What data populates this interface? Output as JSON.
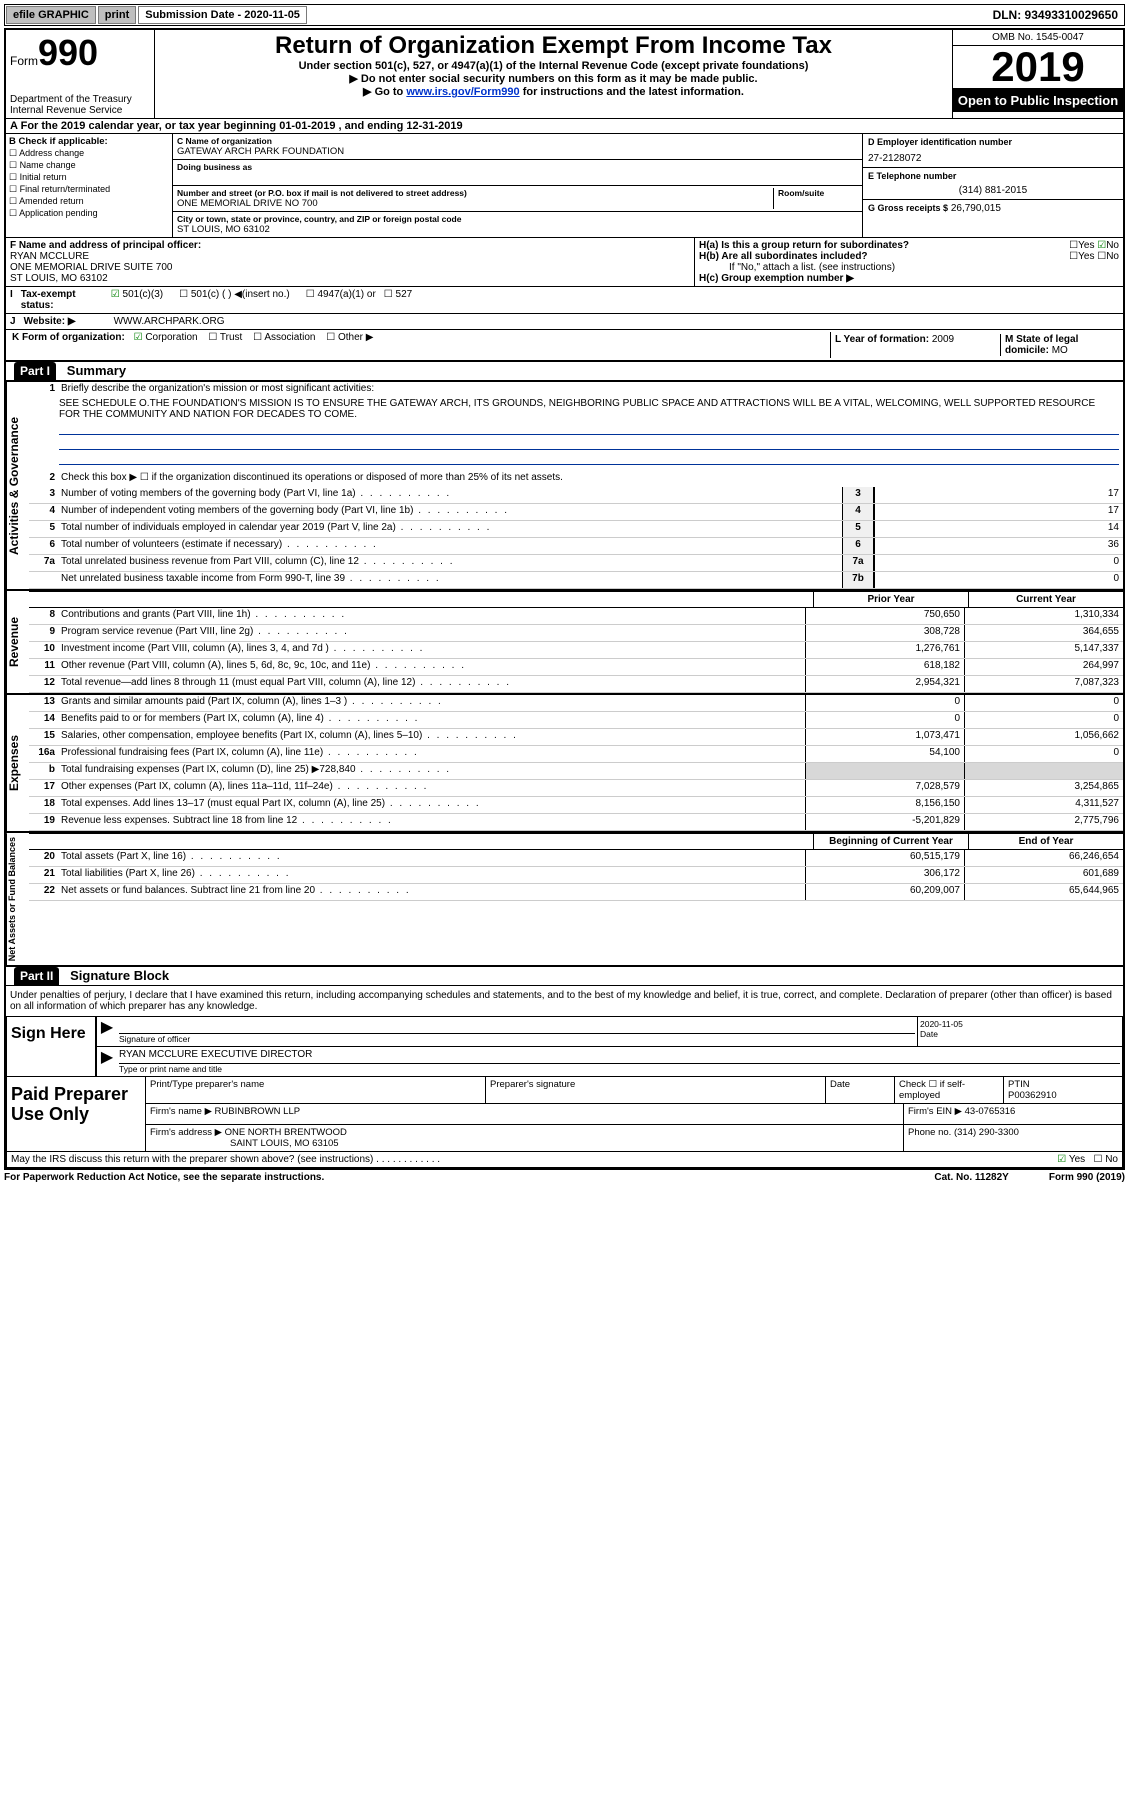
{
  "topbar": {
    "efile": "efile GRAPHIC",
    "print": "print",
    "submission": "Submission Date - 2020-11-05",
    "dln": "DLN: 93493310029650"
  },
  "header": {
    "form_word": "Form",
    "form_num": "990",
    "dept": "Department of the Treasury\nInternal Revenue Service",
    "title": "Return of Organization Exempt From Income Tax",
    "subtitle": "Under section 501(c), 527, or 4947(a)(1) of the Internal Revenue Code (except private foundations)",
    "note1": "Do not enter social security numbers on this form as it may be made public.",
    "note2_pre": "Go to ",
    "note2_link": "www.irs.gov/Form990",
    "note2_post": " for instructions and the latest information.",
    "omb": "OMB No. 1545-0047",
    "year": "2019",
    "open": "Open to Public Inspection"
  },
  "period": "For the 2019 calendar year, or tax year beginning 01-01-2019   , and ending 12-31-2019",
  "B": {
    "hdr": "B Check if applicable:",
    "opts": [
      "Address change",
      "Name change",
      "Initial return",
      "Final return/terminated",
      "Amended return",
      "Application pending"
    ]
  },
  "C": {
    "name_lbl": "C Name of organization",
    "name": "GATEWAY ARCH PARK FOUNDATION",
    "dba_lbl": "Doing business as",
    "addr_lbl": "Number and street (or P.O. box if mail is not delivered to street address)",
    "room_lbl": "Room/suite",
    "addr": "ONE MEMORIAL DRIVE NO 700",
    "city_lbl": "City or town, state or province, country, and ZIP or foreign postal code",
    "city": "ST LOUIS, MO  63102"
  },
  "D": {
    "lbl": "D Employer identification number",
    "val": "27-2128072"
  },
  "E": {
    "lbl": "E Telephone number",
    "val": "(314) 881-2015"
  },
  "G": {
    "lbl": "G Gross receipts $",
    "val": "26,790,015"
  },
  "F": {
    "lbl": "F  Name and address of principal officer:",
    "name": "RYAN MCCLURE",
    "addr": "ONE MEMORIAL DRIVE SUITE 700\nST LOUIS, MO  63102"
  },
  "H": {
    "a": "H(a)  Is this a group return for subordinates?",
    "a_yes": "Yes",
    "a_no": "No",
    "b": "H(b)  Are all subordinates included?",
    "b_note": "If \"No,\" attach a list. (see instructions)",
    "c": "H(c)  Group exemption number ▶"
  },
  "I": {
    "lbl": "Tax-exempt status:",
    "opts": [
      "501(c)(3)",
      "501(c) (  ) ◀(insert no.)",
      "4947(a)(1) or",
      "527"
    ]
  },
  "J": {
    "lbl": "Website: ▶",
    "val": "WWW.ARCHPARK.ORG"
  },
  "K": {
    "lbl": "K Form of organization:",
    "opts": [
      "Corporation",
      "Trust",
      "Association",
      "Other ▶"
    ]
  },
  "L": {
    "lbl": "L Year of formation:",
    "val": "2009"
  },
  "M": {
    "lbl": "M State of legal domicile:",
    "val": "MO"
  },
  "partI": {
    "num": "Part I",
    "title": "Summary"
  },
  "partII": {
    "num": "Part II",
    "title": "Signature Block"
  },
  "mission_lbl": "Briefly describe the organization's mission or most significant activities:",
  "mission": "SEE SCHEDULE O.THE FOUNDATION'S MISSION IS TO ENSURE THE GATEWAY ARCH, ITS GROUNDS, NEIGHBORING PUBLIC SPACE AND ATTRACTIONS WILL BE A VITAL, WELCOMING, WELL SUPPORTED RESOURCE FOR THE COMMUNITY AND NATION FOR DECADES TO COME.",
  "line2": "Check this box ▶ ☐  if the organization discontinued its operations or disposed of more than 25% of its net assets.",
  "lines_gov": [
    {
      "n": "3",
      "d": "Number of voting members of the governing body (Part VI, line 1a)",
      "box": "3",
      "v": "17"
    },
    {
      "n": "4",
      "d": "Number of independent voting members of the governing body (Part VI, line 1b)",
      "box": "4",
      "v": "17"
    },
    {
      "n": "5",
      "d": "Total number of individuals employed in calendar year 2019 (Part V, line 2a)",
      "box": "5",
      "v": "14"
    },
    {
      "n": "6",
      "d": "Total number of volunteers (estimate if necessary)",
      "box": "6",
      "v": "36"
    },
    {
      "n": "7a",
      "d": "Total unrelated business revenue from Part VIII, column (C), line 12",
      "box": "7a",
      "v": "0"
    },
    {
      "n": "",
      "d": "Net unrelated business taxable income from Form 990-T, line 39",
      "box": "7b",
      "v": "0"
    }
  ],
  "hdr_prior": "Prior Year",
  "hdr_curr": "Current Year",
  "lines_rev": [
    {
      "n": "8",
      "d": "Contributions and grants (Part VIII, line 1h)",
      "p": "750,650",
      "c": "1,310,334"
    },
    {
      "n": "9",
      "d": "Program service revenue (Part VIII, line 2g)",
      "p": "308,728",
      "c": "364,655"
    },
    {
      "n": "10",
      "d": "Investment income (Part VIII, column (A), lines 3, 4, and 7d )",
      "p": "1,276,761",
      "c": "5,147,337"
    },
    {
      "n": "11",
      "d": "Other revenue (Part VIII, column (A), lines 5, 6d, 8c, 9c, 10c, and 11e)",
      "p": "618,182",
      "c": "264,997"
    },
    {
      "n": "12",
      "d": "Total revenue—add lines 8 through 11 (must equal Part VIII, column (A), line 12)",
      "p": "2,954,321",
      "c": "7,087,323"
    }
  ],
  "lines_exp": [
    {
      "n": "13",
      "d": "Grants and similar amounts paid (Part IX, column (A), lines 1–3 )",
      "p": "0",
      "c": "0"
    },
    {
      "n": "14",
      "d": "Benefits paid to or for members (Part IX, column (A), line 4)",
      "p": "0",
      "c": "0"
    },
    {
      "n": "15",
      "d": "Salaries, other compensation, employee benefits (Part IX, column (A), lines 5–10)",
      "p": "1,073,471",
      "c": "1,056,662"
    },
    {
      "n": "16a",
      "d": "Professional fundraising fees (Part IX, column (A), line 11e)",
      "p": "54,100",
      "c": "0"
    },
    {
      "n": "b",
      "d": "Total fundraising expenses (Part IX, column (D), line 25) ▶728,840",
      "p": "",
      "c": "",
      "shaded": true
    },
    {
      "n": "17",
      "d": "Other expenses (Part IX, column (A), lines 11a–11d, 11f–24e)",
      "p": "7,028,579",
      "c": "3,254,865"
    },
    {
      "n": "18",
      "d": "Total expenses. Add lines 13–17 (must equal Part IX, column (A), line 25)",
      "p": "8,156,150",
      "c": "4,311,527"
    },
    {
      "n": "19",
      "d": "Revenue less expenses. Subtract line 18 from line 12",
      "p": "-5,201,829",
      "c": "2,775,796"
    }
  ],
  "hdr_begin": "Beginning of Current Year",
  "hdr_end": "End of Year",
  "lines_net": [
    {
      "n": "20",
      "d": "Total assets (Part X, line 16)",
      "p": "60,515,179",
      "c": "66,246,654"
    },
    {
      "n": "21",
      "d": "Total liabilities (Part X, line 26)",
      "p": "306,172",
      "c": "601,689"
    },
    {
      "n": "22",
      "d": "Net assets or fund balances. Subtract line 21 from line 20",
      "p": "60,209,007",
      "c": "65,644,965"
    }
  ],
  "sig_intro": "Under penalties of perjury, I declare that I have examined this return, including accompanying schedules and statements, and to the best of my knowledge and belief, it is true, correct, and complete. Declaration of preparer (other than officer) is based on all information of which preparer has any knowledge.",
  "sign_here": "Sign Here",
  "sig_officer_lbl": "Signature of officer",
  "sig_date_lbl": "Date",
  "sig_date": "2020-11-05",
  "sig_name": "RYAN MCCLURE  EXECUTIVE DIRECTOR",
  "sig_name_lbl": "Type or print name and title",
  "paid": "Paid Preparer Use Only",
  "paid_r1": {
    "a": "Print/Type preparer's name",
    "b": "Preparer's signature",
    "c": "Date",
    "d": "Check ☐ if self-employed",
    "e_lbl": "PTIN",
    "e": "P00362910"
  },
  "paid_r2": {
    "a": "Firm's name    ▶",
    "b": "RUBINBROWN LLP",
    "c": "Firm's EIN ▶",
    "d": "43-0765316"
  },
  "paid_r3": {
    "a": "Firm's address ▶",
    "b": "ONE NORTH BRENTWOOD",
    "b2": "SAINT LOUIS, MO  63105",
    "c": "Phone no.",
    "d": "(314) 290-3300"
  },
  "irs_discuss": "May the IRS discuss this return with the preparer shown above? (see instructions)",
  "footer": {
    "l": "For Paperwork Reduction Act Notice, see the separate instructions.",
    "m": "Cat. No. 11282Y",
    "r": "Form 990 (2019)"
  }
}
